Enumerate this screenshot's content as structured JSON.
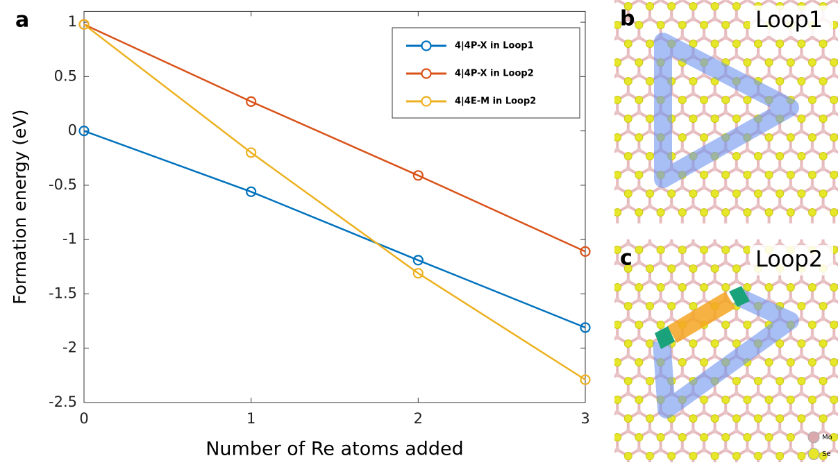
{
  "chart_data": {
    "type": "line",
    "panel_label": "a",
    "x_label": "Number of Re atoms added",
    "y_label": "Formation energy (eV)",
    "x": [
      0,
      1,
      2,
      3
    ],
    "series": [
      {
        "name": "4|4P-X in Loop1",
        "color": "#0072bd",
        "values": [
          0,
          -0.56,
          -1.19,
          -1.81
        ]
      },
      {
        "name": "4|4P-X in Loop2",
        "color": "#d95319",
        "values": [
          0.98,
          0.27,
          -0.41,
          -1.11
        ]
      },
      {
        "name": "4|4E-M in Loop2",
        "color": "#edb120",
        "values": [
          0.98,
          -0.2,
          -1.31,
          -2.29
        ]
      }
    ],
    "xlim": [
      0,
      3
    ],
    "xticks": [
      0,
      1,
      2,
      3
    ],
    "ylim": [
      -2.5,
      1.1
    ],
    "yticks": [
      1,
      0.5,
      0,
      -0.5,
      -1,
      -1.5,
      -2,
      -2.5
    ],
    "legend": "upper right"
  },
  "structures": [
    {
      "label": "b",
      "title": "Loop1"
    },
    {
      "label": "c",
      "title": "Loop2"
    }
  ],
  "atom_legend": [
    "Mo",
    "Se"
  ]
}
